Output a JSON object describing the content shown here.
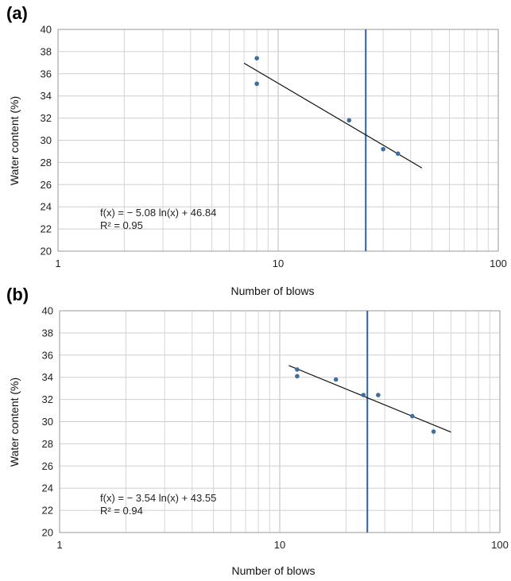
{
  "chart_data": [
    {
      "panel_label": "(a)",
      "type": "scatter",
      "x_scale": "log",
      "xlim": [
        1,
        100
      ],
      "ylim": [
        20,
        40
      ],
      "xticks": [
        "1",
        "10",
        "100"
      ],
      "yticks": [
        "20",
        "22",
        "24",
        "26",
        "28",
        "30",
        "32",
        "34",
        "36",
        "38",
        "40"
      ],
      "xlabel": "Number of blows",
      "ylabel": "Water content (%)",
      "grid": true,
      "points": [
        {
          "x": 8,
          "y": 37.4
        },
        {
          "x": 8,
          "y": 35.1
        },
        {
          "x": 21,
          "y": 31.8
        },
        {
          "x": 30,
          "y": 29.2
        },
        {
          "x": 35,
          "y": 28.8
        }
      ],
      "trendline": {
        "a": -5.08,
        "b": 46.84,
        "x_range": [
          7,
          45
        ]
      },
      "vertical_line_x": 25,
      "equation_text": "f(x) = − 5.08 ln(x) + 46.84",
      "r2_text": "R² = 0.95",
      "point_color": "#3a6ea5",
      "vline_color": "#2e5fa3"
    },
    {
      "panel_label": "(b)",
      "type": "scatter",
      "x_scale": "log",
      "xlim": [
        1,
        100
      ],
      "ylim": [
        20,
        40
      ],
      "xticks": [
        "1",
        "10",
        "100"
      ],
      "yticks": [
        "20",
        "22",
        "24",
        "26",
        "28",
        "30",
        "32",
        "34",
        "36",
        "38",
        "40"
      ],
      "xlabel": "Number of blows",
      "ylabel": "Water content (%)",
      "grid": true,
      "points": [
        {
          "x": 12,
          "y": 34.7
        },
        {
          "x": 12,
          "y": 34.1
        },
        {
          "x": 18,
          "y": 33.8
        },
        {
          "x": 24,
          "y": 32.4
        },
        {
          "x": 28,
          "y": 32.4
        },
        {
          "x": 40,
          "y": 30.5
        },
        {
          "x": 50,
          "y": 29.1
        }
      ],
      "trendline": {
        "a": -3.54,
        "b": 43.55,
        "x_range": [
          11,
          60
        ]
      },
      "vertical_line_x": 25,
      "equation_text": "f(x) = − 3.54 ln(x) + 43.55",
      "r2_text": "R² = 0.94",
      "point_color": "#3a6ea5",
      "vline_color": "#2e5fa3"
    }
  ]
}
